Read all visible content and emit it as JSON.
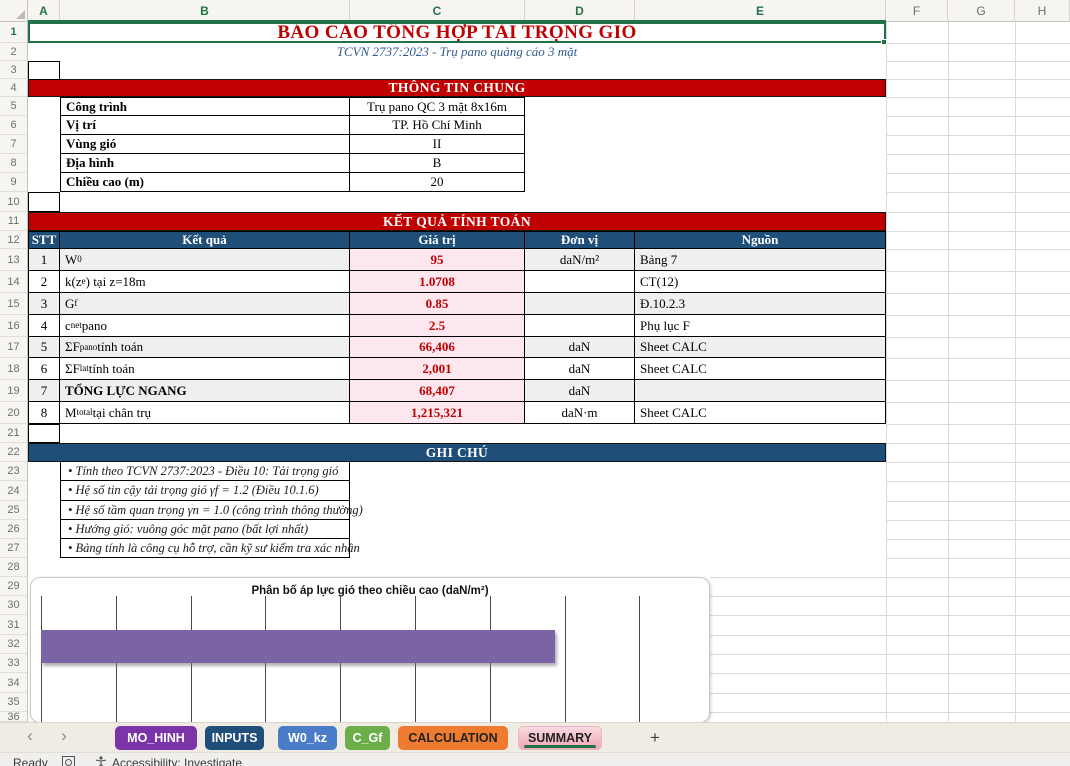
{
  "report": {
    "title": "BÁO CÁO TỔNG HỢP TẢI TRỌNG GIÓ",
    "subtitle": "TCVN 2737:2023 - Trụ pano quảng cáo 3 mặt"
  },
  "columns": [
    "A",
    "B",
    "C",
    "D",
    "E",
    "F",
    "G",
    "H"
  ],
  "selected_columns": [
    "A",
    "B",
    "C",
    "D",
    "E"
  ],
  "selected_row": "1",
  "info_section": {
    "header": "THÔNG TIN CHUNG",
    "rows": [
      {
        "label": "Công trình",
        "value": "Trụ pano QC 3 mặt 8x16m"
      },
      {
        "label": "Vị trí",
        "value": "TP. Hồ Chí Minh"
      },
      {
        "label": "Vùng gió",
        "value": "II"
      },
      {
        "label": "Địa hình",
        "value": "B"
      },
      {
        "label": "Chiều cao (m)",
        "value": "20"
      }
    ]
  },
  "results_section": {
    "header": "KẾT QUẢ TÍNH TOÁN",
    "columns": [
      "STT",
      "Kết quả",
      "Giá trị",
      "Đơn vị",
      "Nguồn"
    ],
    "rows": [
      {
        "stt": "1",
        "name_parts": [
          [
            "W",
            false
          ],
          [
            "0",
            true
          ]
        ],
        "value": "95",
        "unit": "daN/m²",
        "source": "Bảng 7",
        "bold": false
      },
      {
        "stt": "2",
        "name_parts": [
          [
            "k(z",
            false
          ],
          [
            "e",
            true
          ],
          [
            ") tại z=18m",
            false
          ]
        ],
        "value": "1.0708",
        "unit": "",
        "source": "CT(12)",
        "bold": false
      },
      {
        "stt": "3",
        "name_parts": [
          [
            "G",
            false
          ],
          [
            "f",
            true
          ]
        ],
        "value": "0.85",
        "unit": "",
        "source": "Đ.10.2.3",
        "bold": false
      },
      {
        "stt": "4",
        "name_parts": [
          [
            "c",
            false
          ],
          [
            "net",
            true
          ],
          [
            " pano",
            false
          ]
        ],
        "value": "2.5",
        "unit": "",
        "source": "Phụ lục F",
        "bold": false
      },
      {
        "stt": "5",
        "name_parts": [
          [
            "ΣF",
            false
          ],
          [
            "pano",
            true
          ],
          [
            " tính toán",
            false
          ]
        ],
        "value": "66,406",
        "unit": "daN",
        "source": "Sheet CALC",
        "bold": false
      },
      {
        "stt": "6",
        "name_parts": [
          [
            "ΣF",
            false
          ],
          [
            "lat",
            true
          ],
          [
            " tính toán",
            false
          ]
        ],
        "value": "2,001",
        "unit": "daN",
        "source": "Sheet CALC",
        "bold": false
      },
      {
        "stt": "7",
        "name_parts": [
          [
            "TỔNG LỰC NGANG",
            false
          ]
        ],
        "value": "68,407",
        "unit": "daN",
        "source": "",
        "bold": true
      },
      {
        "stt": "8",
        "name_parts": [
          [
            "M",
            false
          ],
          [
            "total",
            true
          ],
          [
            " tại chân trụ",
            false
          ]
        ],
        "value": "1,215,321",
        "unit": "daN·m",
        "source": "Sheet CALC",
        "bold": false
      }
    ]
  },
  "notes_section": {
    "header": "GHI CHÚ",
    "items": [
      "• Tính theo TCVN 2737:2023 - Điều 10: Tải trọng gió",
      "• Hệ số tin cậy tải trọng gió γf = 1.2 (Điều 10.1.6)",
      "• Hệ số tầm quan trọng γn = 1.0 (công trình thông thường)",
      "• Hướng gió: vuông góc mặt pano (bất lợi nhất)",
      "• Bảng tính là công cụ hỗ trợ, cần kỹ sư kiểm tra xác nhận"
    ]
  },
  "chart_data": {
    "type": "bar",
    "orientation": "horizontal",
    "title": "Phân bố áp lực gió theo chiều cao (daN/m²)",
    "bar_color": "#7B64A5",
    "gridlines": "vertical",
    "vertical_gridline_count": 9,
    "visible_bars": [
      {
        "length_fraction_of_plot_width": 0.76
      }
    ],
    "note": "Chart is cut off by the sheet-tab bar; axis tick labels and remaining bars are not visible in the screenshot"
  },
  "sheet_tabs": [
    {
      "label": "MO_HINH",
      "color": "#7C35A8",
      "text_color": "#FFFFFF",
      "active": false
    },
    {
      "label": "INPUTS",
      "color": "#1F4E79",
      "text_color": "#FFFFFF",
      "active": false
    },
    {
      "label": "W0_kz",
      "color": "#4A7CC7",
      "text_color": "#FFFFFF",
      "active": false
    },
    {
      "label": "C_Gf",
      "color": "#6CAE4A",
      "text_color": "#FFFFFF",
      "active": false
    },
    {
      "label": "CALCULATION",
      "color": "#EE7B30",
      "text_color": "#222222",
      "active": false
    },
    {
      "label": "SUMMARY",
      "color": "#F5C3CC",
      "text_color": "#222222",
      "active": true
    }
  ],
  "tab_bar": {
    "nav_left": "‹",
    "nav_right": "›",
    "new_sheet": "+"
  },
  "status_bar": {
    "ready": "Ready",
    "accessibility": "Accessibility: Investigate"
  },
  "colors": {
    "accent_red": "#C00000",
    "accent_navy": "#1F4E79",
    "value_cell_bg": "#FCE7EF",
    "alt_row_bg": "#EFEFEF",
    "selection_green": "#217346",
    "chart_bar": "#7B64A5"
  }
}
